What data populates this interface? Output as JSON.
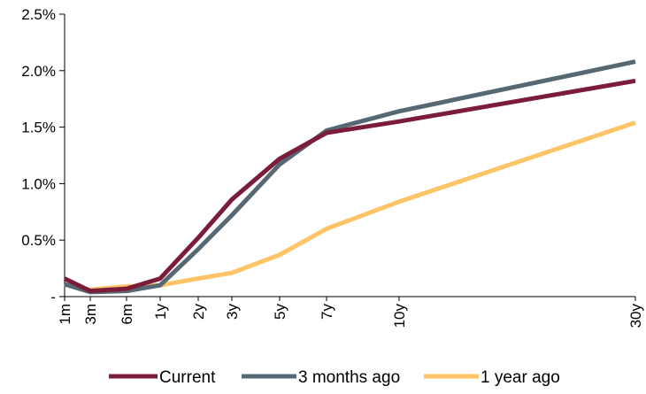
{
  "chart_data": {
    "type": "line",
    "title": "",
    "xlabel": "",
    "ylabel": "",
    "ylim": [
      0,
      2.5
    ],
    "y_tick_labels": [
      "-",
      "0.5%",
      "1.0%",
      "1.5%",
      "2.0%",
      "2.5%"
    ],
    "y_tick_values": [
      0,
      0.5,
      1.0,
      1.5,
      2.0,
      2.5
    ],
    "x_tick_labels": [
      "1m",
      "3m",
      "6m",
      "1y",
      "2y",
      "3y",
      "5y",
      "7y",
      "10y",
      "30y"
    ],
    "grid": false,
    "legend_position": "bottom",
    "series": [
      {
        "name": "Current",
        "color": "#7b1c3a",
        "values": [
          0.16,
          0.05,
          0.07,
          0.16,
          0.52,
          0.86,
          1.22,
          1.45,
          1.55,
          1.91
        ]
      },
      {
        "name": "3 months ago",
        "color": "#566873",
        "values": [
          0.11,
          0.04,
          0.05,
          0.1,
          0.42,
          0.72,
          1.17,
          1.47,
          1.64,
          2.08
        ]
      },
      {
        "name": "1 year ago",
        "color": "#fec465",
        "values": [
          0.11,
          0.06,
          0.09,
          0.1,
          0.16,
          0.21,
          0.37,
          0.6,
          0.84,
          1.54
        ]
      }
    ]
  }
}
